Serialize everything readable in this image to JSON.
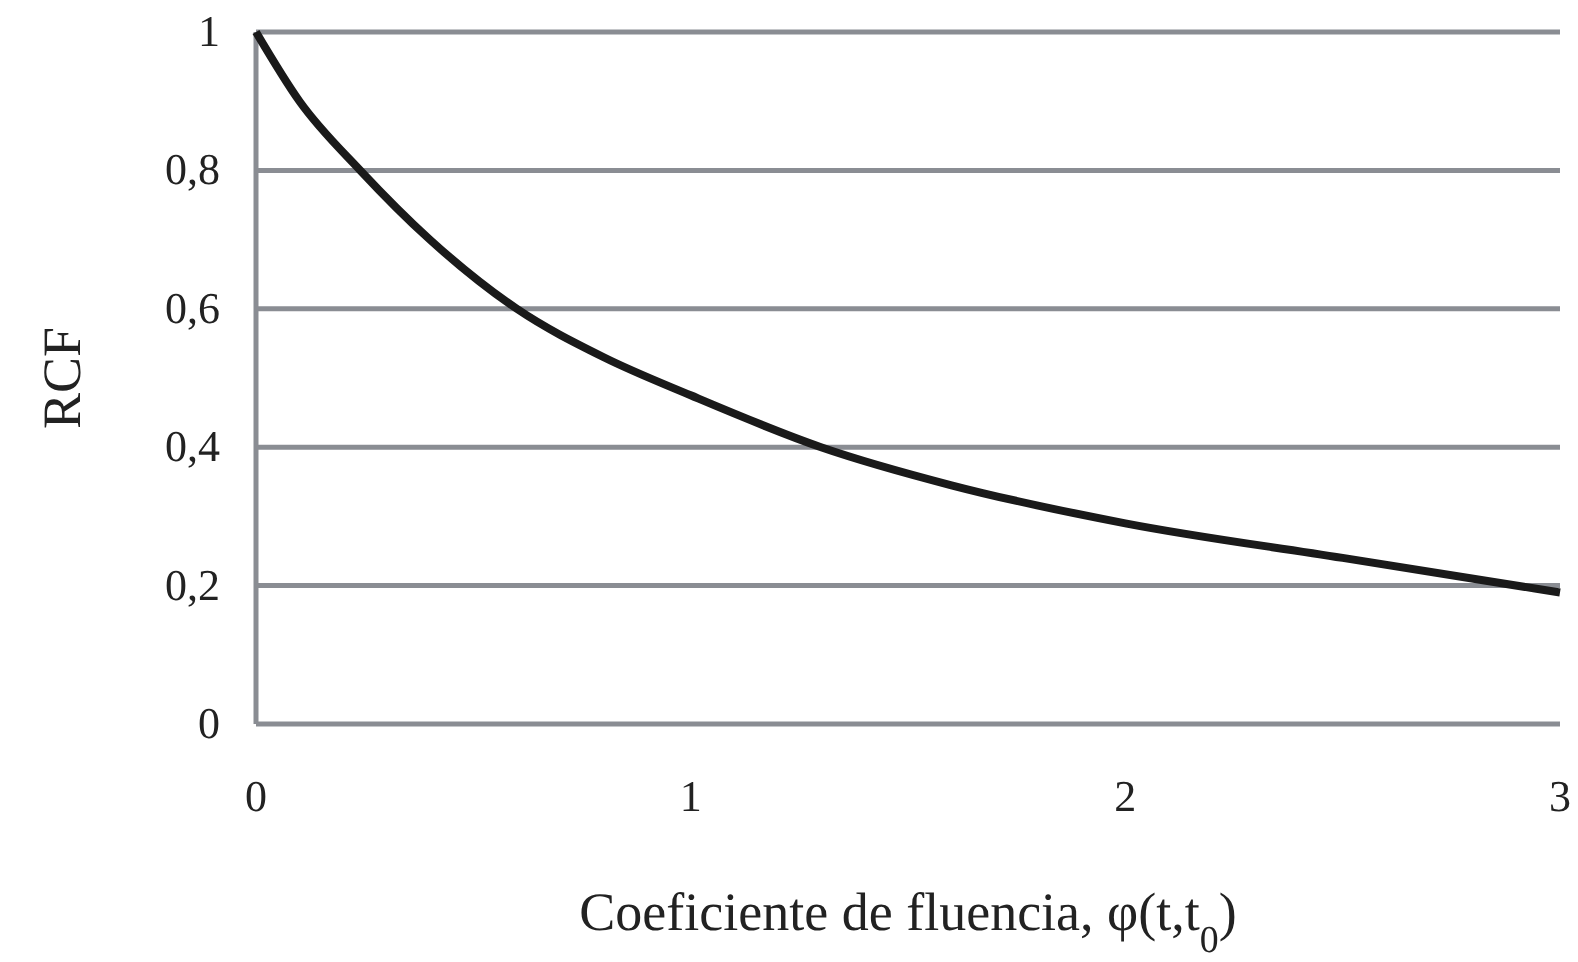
{
  "chart_data": {
    "type": "line",
    "xlabel": "Coeficiente de fluencia, φ(t,t$_{0}$)",
    "ylabel": "RCF",
    "x": [
      0,
      0.1,
      0.24,
      0.4,
      0.6,
      0.8,
      1,
      1.3,
      1.6,
      2,
      2.5,
      3
    ],
    "series": [
      {
        "color": "#1a1a1a",
        "values": [
          1,
          0.9,
          0.8,
          0.7,
          0.6,
          0.53,
          0.475,
          0.4,
          0.345,
          0.29,
          0.24,
          0.19
        ]
      }
    ],
    "xlim": [
      0,
      3
    ],
    "xticks": [
      0,
      1,
      2,
      3
    ],
    "ylim": [
      0,
      1
    ],
    "yticks": [
      {
        "value": 0,
        "label": "0"
      },
      {
        "value": 0.2,
        "label": "0,2"
      },
      {
        "value": 0.4,
        "label": "0,4"
      },
      {
        "value": 0.6,
        "label": "0,6"
      },
      {
        "value": 0.8,
        "label": "0,8"
      },
      {
        "value": 1,
        "label": "1"
      }
    ],
    "grid": "y",
    "line_style": "solid"
  }
}
